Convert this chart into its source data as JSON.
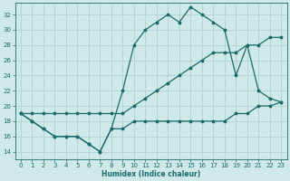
{
  "xlabel": "Humidex (Indice chaleur)",
  "background_color": "#cfe8e8",
  "grid_color": "#aacccc",
  "line_color": "#1a6b6b",
  "xlim": [
    -0.5,
    23.5
  ],
  "ylim": [
    13,
    33.5
  ],
  "yticks": [
    14,
    16,
    18,
    20,
    22,
    24,
    26,
    28,
    30,
    32
  ],
  "xticks": [
    0,
    1,
    2,
    3,
    4,
    5,
    6,
    7,
    8,
    9,
    10,
    11,
    12,
    13,
    14,
    15,
    16,
    17,
    18,
    19,
    20,
    21,
    22,
    23
  ],
  "line_jagged_x": [
    0,
    1,
    2,
    3,
    4,
    5,
    6,
    7,
    8,
    9,
    10,
    11,
    12,
    13,
    14,
    15,
    16,
    17,
    18,
    19,
    20,
    21,
    22,
    23
  ],
  "line_jagged_y": [
    19,
    18,
    17,
    16,
    16,
    16,
    15,
    14,
    17,
    22,
    28,
    30,
    31,
    32,
    31,
    33,
    32,
    31,
    30,
    24,
    28,
    22,
    21,
    20.5
  ],
  "line_diag_x": [
    0,
    1,
    2,
    3,
    4,
    5,
    6,
    7,
    8,
    9,
    10,
    11,
    12,
    13,
    14,
    15,
    16,
    17,
    18,
    19,
    20,
    21,
    22,
    23
  ],
  "line_diag_y": [
    19,
    19,
    19,
    19,
    19,
    19,
    19,
    19,
    19,
    19,
    20,
    21,
    22,
    23,
    24,
    25,
    26,
    27,
    27,
    27,
    28,
    28,
    29,
    29
  ],
  "line_bottom_x": [
    0,
    1,
    2,
    3,
    4,
    5,
    6,
    7,
    8,
    9,
    10,
    11,
    12,
    13,
    14,
    15,
    16,
    17,
    18,
    19,
    20,
    21,
    22,
    23
  ],
  "line_bottom_y": [
    19,
    18,
    17,
    16,
    16,
    16,
    15,
    14,
    17,
    17,
    18,
    18,
    18,
    18,
    18,
    18,
    18,
    18,
    18,
    19,
    19,
    20,
    20,
    20.5
  ]
}
